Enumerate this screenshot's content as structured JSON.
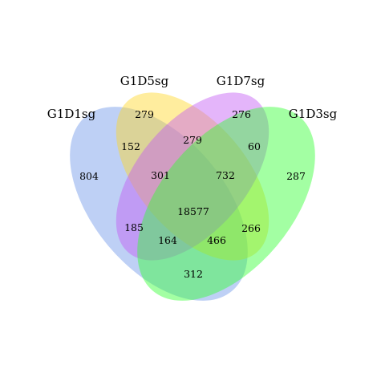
{
  "sets": [
    {
      "id": "A",
      "name": "G1D1sg",
      "color": "#6f96e8"
    },
    {
      "id": "B",
      "name": "G1D5sg",
      "color": "#ffd728"
    },
    {
      "id": "C",
      "name": "G1D7sg",
      "color": "#c35cf5"
    },
    {
      "id": "D",
      "name": "G1D3sg",
      "color": "#33ff33"
    }
  ],
  "regions": [
    {
      "sets": [
        "A"
      ],
      "value": "804"
    },
    {
      "sets": [
        "B"
      ],
      "value": "279"
    },
    {
      "sets": [
        "C"
      ],
      "value": "276"
    },
    {
      "sets": [
        "D"
      ],
      "value": "287"
    },
    {
      "sets": [
        "A",
        "B"
      ],
      "value": "152"
    },
    {
      "sets": [
        "B",
        "C"
      ],
      "value": "279"
    },
    {
      "sets": [
        "C",
        "D"
      ],
      "value": "60"
    },
    {
      "sets": [
        "A",
        "B",
        "C"
      ],
      "value": "301"
    },
    {
      "sets": [
        "B",
        "C",
        "D"
      ],
      "value": "732"
    },
    {
      "sets": [
        "A",
        "B",
        "C",
        "D"
      ],
      "value": "18577"
    },
    {
      "sets": [
        "A",
        "C"
      ],
      "value": "185"
    },
    {
      "sets": [
        "B",
        "D"
      ],
      "value": "266"
    },
    {
      "sets": [
        "A",
        "C",
        "D"
      ],
      "value": "164"
    },
    {
      "sets": [
        "A",
        "B",
        "D"
      ],
      "value": "466"
    },
    {
      "sets": [
        "A",
        "D"
      ],
      "value": "312"
    }
  ]
}
